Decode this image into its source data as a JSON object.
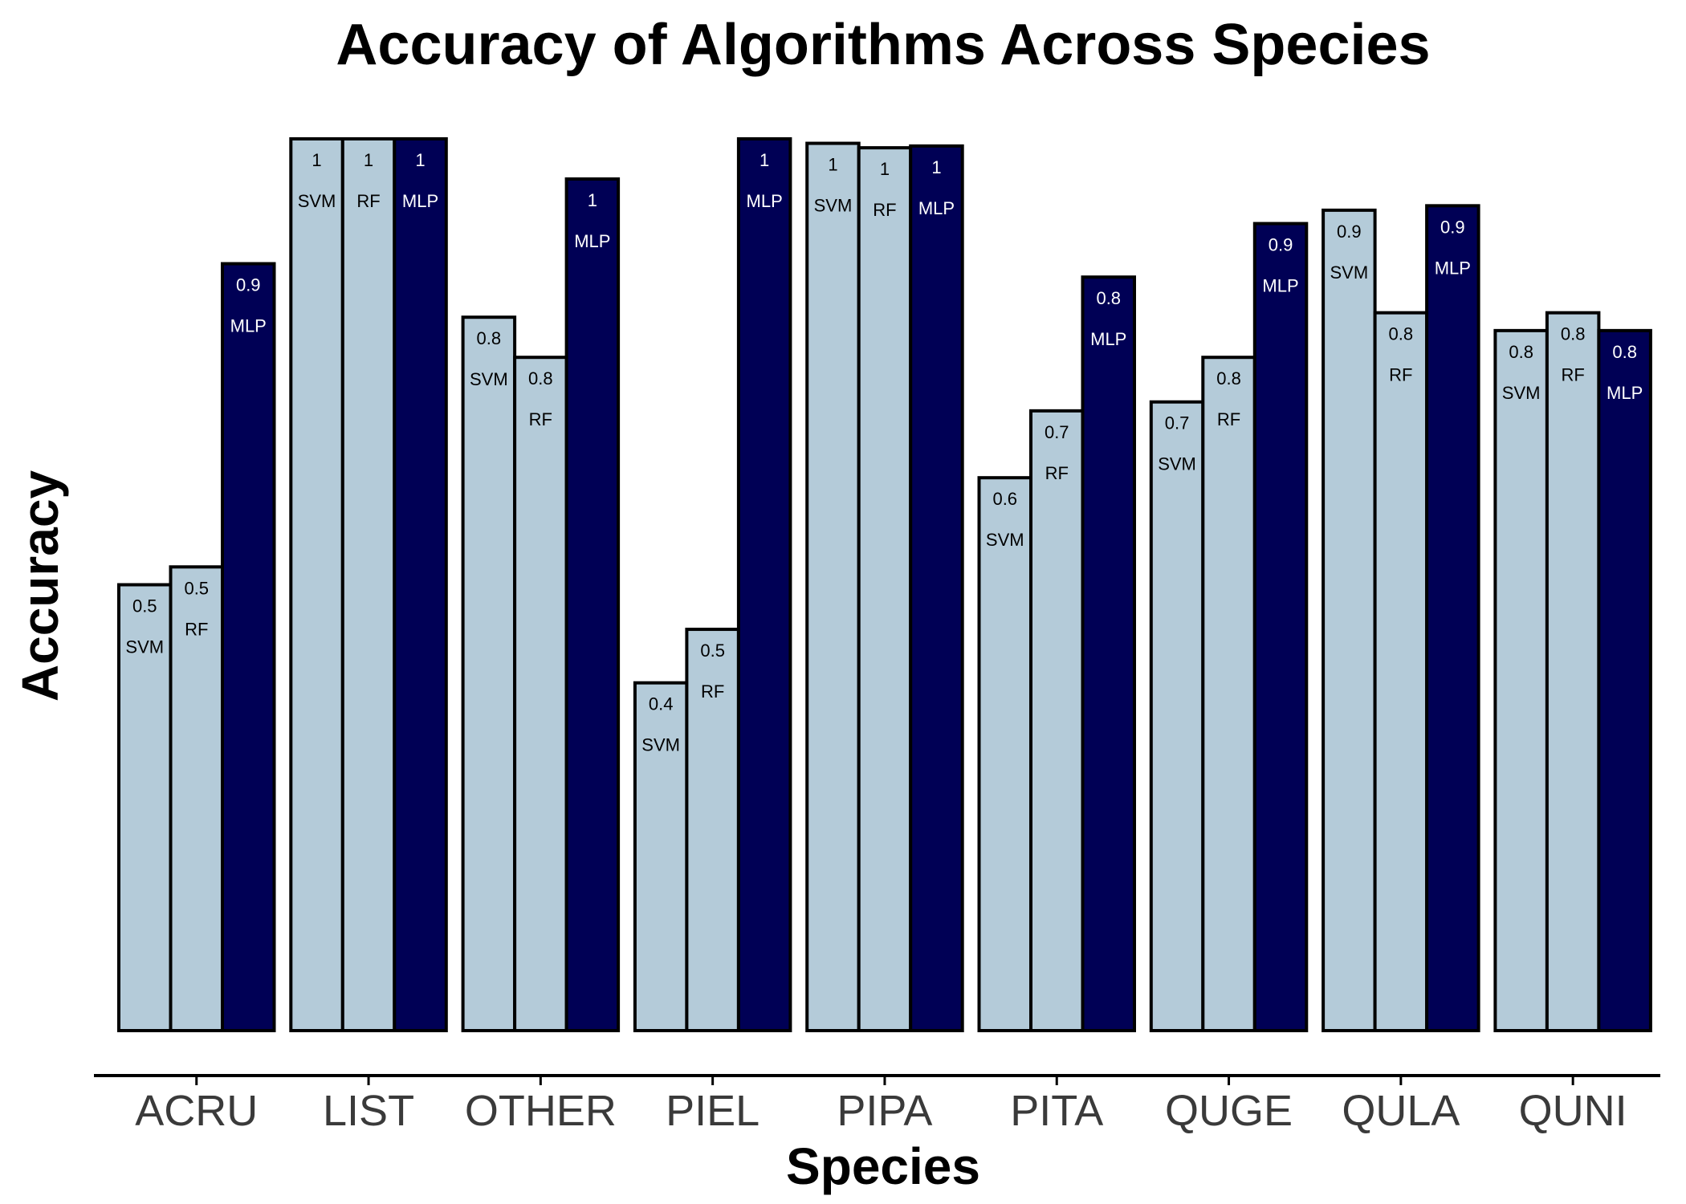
{
  "chart_data": {
    "type": "bar",
    "title": "Accuracy of Algorithms Across Species",
    "xlabel": "Species",
    "ylabel": "Accuracy",
    "categories": [
      "ACRU",
      "LIST",
      "OTHER",
      "PIEL",
      "PIPA",
      "PITA",
      "QUGE",
      "QULA",
      "QUNI"
    ],
    "series": [
      {
        "name": "SVM",
        "values": [
          0.5,
          1.0,
          0.8,
          0.39,
          0.995,
          0.62,
          0.705,
          0.92,
          0.785
        ]
      },
      {
        "name": "RF",
        "values": [
          0.52,
          1.0,
          0.755,
          0.45,
          0.99,
          0.695,
          0.755,
          0.805,
          0.805
        ]
      },
      {
        "name": "MLP",
        "values": [
          0.86,
          1.0,
          0.955,
          1.0,
          0.992,
          0.845,
          0.905,
          0.925,
          0.785
        ]
      }
    ],
    "value_labels": [
      [
        "0.5",
        "0.5",
        "0.9"
      ],
      [
        "1",
        "1",
        "1"
      ],
      [
        "0.8",
        "0.8",
        "1"
      ],
      [
        "0.4",
        "0.5",
        "1"
      ],
      [
        "1",
        "1",
        "1"
      ],
      [
        "0.6",
        "0.7",
        "0.8"
      ],
      [
        "0.7",
        "0.8",
        "0.9"
      ],
      [
        "0.9",
        "0.8",
        "0.9"
      ],
      [
        "0.8",
        "0.8",
        "0.8"
      ]
    ],
    "ylim": [
      0,
      1
    ],
    "grid": false,
    "legend": "none",
    "colors": {
      "SVM": "#b4cbd9",
      "RF": "#b4cbd9",
      "MLP": "#000055",
      "outline": "#000000"
    },
    "label_colors": {
      "SVM": "#000000",
      "RF": "#000000",
      "MLP": "#ffffff"
    }
  }
}
